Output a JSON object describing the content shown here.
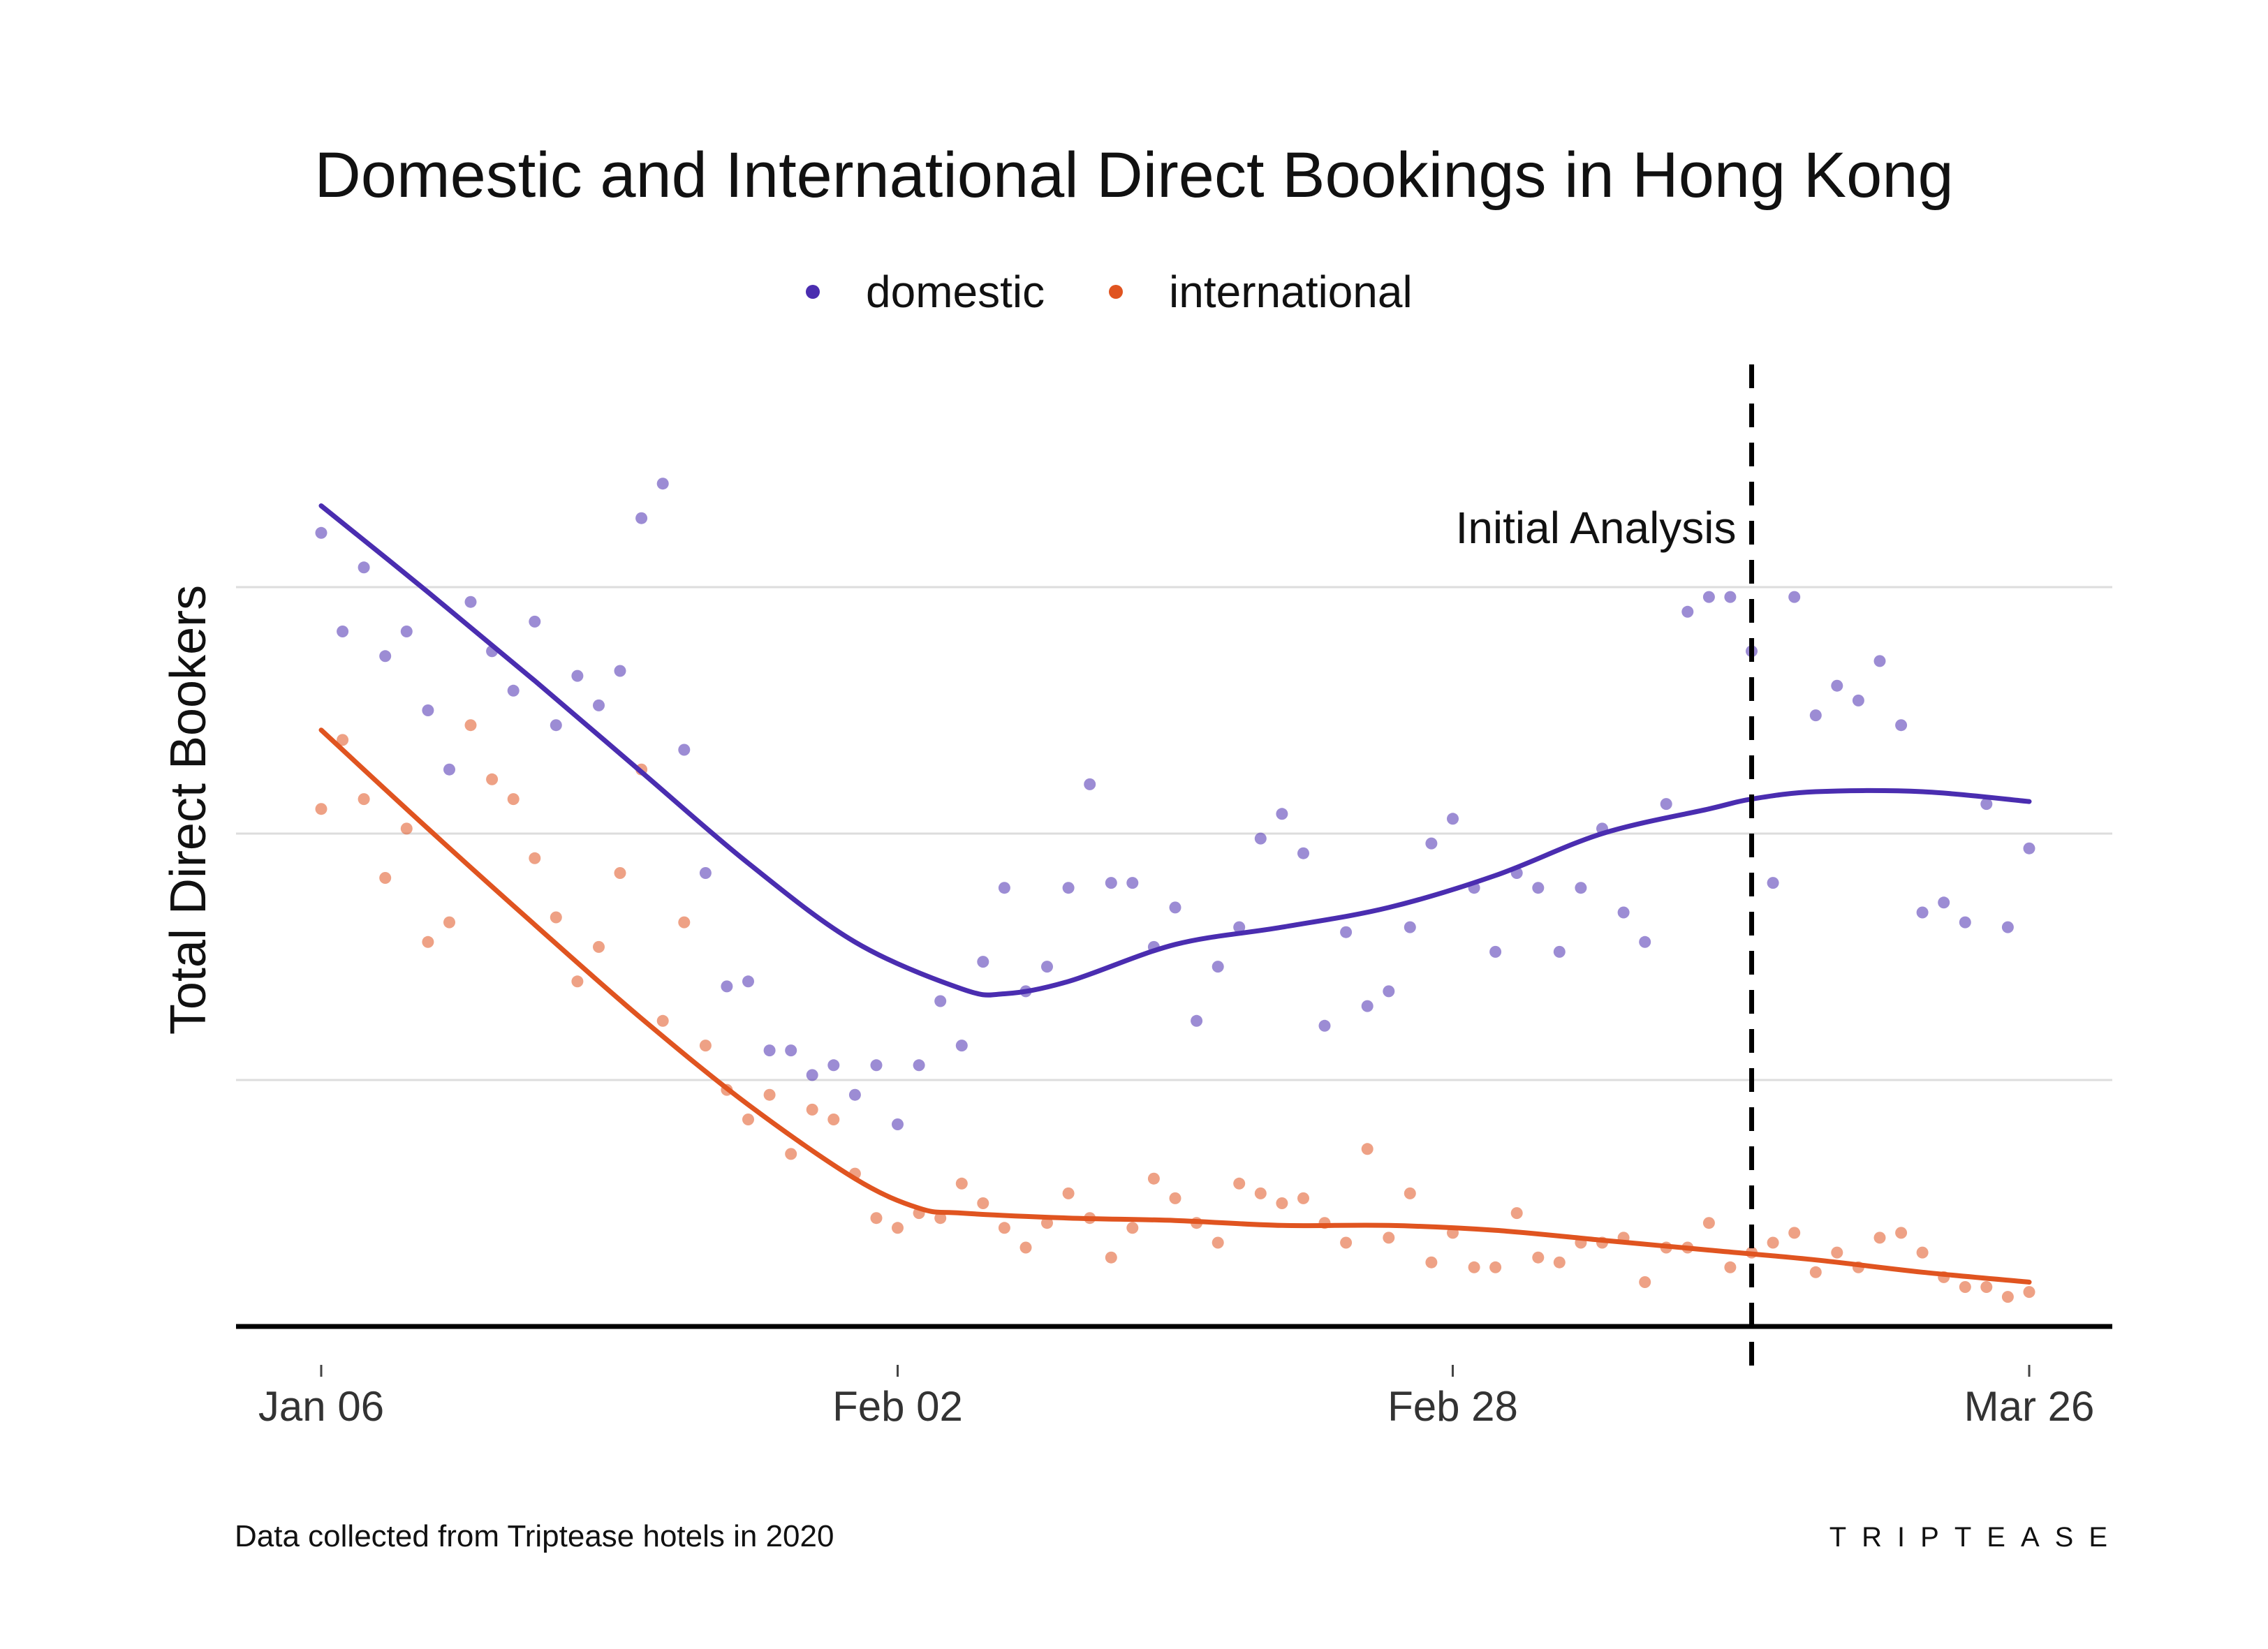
{
  "chart_data": {
    "type": "scatter",
    "title": "Domestic and International Direct Bookings in Hong Kong",
    "xlabel": "",
    "ylabel": "Total Direct Bookers",
    "x_tick_labels": [
      "Jan 06",
      "Feb 02",
      "Feb 28",
      "Mar 26"
    ],
    "x_tick_days": [
      0,
      27,
      53,
      80
    ],
    "xlim": [
      -4,
      84
    ],
    "y_ticks_labeled": false,
    "ylim": [
      0,
      3.2
    ],
    "y_gridlines": [
      1,
      2,
      3
    ],
    "grid": true,
    "legend_position": "top",
    "annotation": {
      "label": "Initial Analysis",
      "x": 67
    },
    "series": [
      {
        "name": "domestic",
        "color": "#4a2db0",
        "points": [
          [
            0,
            3.22
          ],
          [
            1,
            2.82
          ],
          [
            2,
            3.08
          ],
          [
            3,
            2.72
          ],
          [
            4,
            2.82
          ],
          [
            5,
            2.5
          ],
          [
            6,
            2.26
          ],
          [
            7,
            2.94
          ],
          [
            8,
            2.74
          ],
          [
            9,
            2.58
          ],
          [
            10,
            2.86
          ],
          [
            11,
            2.44
          ],
          [
            12,
            2.64
          ],
          [
            13,
            2.52
          ],
          [
            14,
            2.66
          ],
          [
            15,
            3.28
          ],
          [
            16,
            3.42
          ],
          [
            17,
            2.34
          ],
          [
            18,
            1.84
          ],
          [
            19,
            1.38
          ],
          [
            20,
            1.4
          ],
          [
            21,
            1.12
          ],
          [
            22,
            1.12
          ],
          [
            23,
            1.02
          ],
          [
            24,
            1.06
          ],
          [
            25,
            0.94
          ],
          [
            26,
            1.06
          ],
          [
            27,
            0.82
          ],
          [
            28,
            1.06
          ],
          [
            29,
            1.32
          ],
          [
            30,
            1.14
          ],
          [
            31,
            1.48
          ],
          [
            32,
            1.78
          ],
          [
            33,
            1.36
          ],
          [
            34,
            1.46
          ],
          [
            35,
            1.78
          ],
          [
            36,
            2.2
          ],
          [
            37,
            1.8
          ],
          [
            38,
            1.8
          ],
          [
            39,
            1.54
          ],
          [
            40,
            1.7
          ],
          [
            41,
            1.24
          ],
          [
            42,
            1.46
          ],
          [
            43,
            1.62
          ],
          [
            44,
            1.98
          ],
          [
            45,
            2.08
          ],
          [
            46,
            1.92
          ],
          [
            47,
            1.22
          ],
          [
            48,
            1.6
          ],
          [
            49,
            1.3
          ],
          [
            50,
            1.36
          ],
          [
            51,
            1.62
          ],
          [
            52,
            1.96
          ],
          [
            53,
            2.06
          ],
          [
            54,
            1.78
          ],
          [
            55,
            1.52
          ],
          [
            56,
            1.84
          ],
          [
            57,
            1.78
          ],
          [
            58,
            1.52
          ],
          [
            59,
            1.78
          ],
          [
            60,
            2.02
          ],
          [
            61,
            1.68
          ],
          [
            62,
            1.56
          ],
          [
            63,
            2.12
          ],
          [
            64,
            2.9
          ],
          [
            65,
            2.96
          ],
          [
            66,
            2.96
          ],
          [
            67,
            2.74
          ],
          [
            68,
            1.8
          ],
          [
            69,
            2.96
          ],
          [
            70,
            2.48
          ],
          [
            71,
            2.6
          ],
          [
            72,
            2.54
          ],
          [
            73,
            2.7
          ],
          [
            74,
            2.44
          ],
          [
            75,
            1.68
          ],
          [
            76,
            1.72
          ],
          [
            77,
            1.64
          ],
          [
            78,
            2.12
          ],
          [
            79,
            1.62
          ],
          [
            80,
            1.94
          ]
        ],
        "trend": [
          [
            0,
            3.33
          ],
          [
            5,
            2.98
          ],
          [
            10,
            2.62
          ],
          [
            15,
            2.25
          ],
          [
            20,
            1.88
          ],
          [
            25,
            1.56
          ],
          [
            30,
            1.37
          ],
          [
            32,
            1.35
          ],
          [
            35,
            1.4
          ],
          [
            40,
            1.55
          ],
          [
            45,
            1.62
          ],
          [
            50,
            1.7
          ],
          [
            55,
            1.83
          ],
          [
            60,
            2.0
          ],
          [
            65,
            2.1
          ],
          [
            67,
            2.14
          ],
          [
            70,
            2.17
          ],
          [
            75,
            2.17
          ],
          [
            80,
            2.13
          ]
        ]
      },
      {
        "name": "international",
        "color": "#e05420",
        "points": [
          [
            0,
            2.1
          ],
          [
            1,
            2.38
          ],
          [
            2,
            2.14
          ],
          [
            3,
            1.82
          ],
          [
            4,
            2.02
          ],
          [
            5,
            1.56
          ],
          [
            6,
            1.64
          ],
          [
            7,
            2.44
          ],
          [
            8,
            2.22
          ],
          [
            9,
            2.14
          ],
          [
            10,
            1.9
          ],
          [
            11,
            1.66
          ],
          [
            12,
            1.4
          ],
          [
            13,
            1.54
          ],
          [
            14,
            1.84
          ],
          [
            15,
            2.26
          ],
          [
            16,
            1.24
          ],
          [
            17,
            1.64
          ],
          [
            18,
            1.14
          ],
          [
            19,
            0.96
          ],
          [
            20,
            0.84
          ],
          [
            21,
            0.94
          ],
          [
            22,
            0.7
          ],
          [
            23,
            0.88
          ],
          [
            24,
            0.84
          ],
          [
            25,
            0.62
          ],
          [
            26,
            0.44
          ],
          [
            27,
            0.4
          ],
          [
            28,
            0.46
          ],
          [
            29,
            0.44
          ],
          [
            30,
            0.58
          ],
          [
            31,
            0.5
          ],
          [
            32,
            0.4
          ],
          [
            33,
            0.32
          ],
          [
            34,
            0.42
          ],
          [
            35,
            0.54
          ],
          [
            36,
            0.44
          ],
          [
            37,
            0.28
          ],
          [
            38,
            0.4
          ],
          [
            39,
            0.6
          ],
          [
            40,
            0.52
          ],
          [
            41,
            0.42
          ],
          [
            42,
            0.34
          ],
          [
            43,
            0.58
          ],
          [
            44,
            0.54
          ],
          [
            45,
            0.5
          ],
          [
            46,
            0.52
          ],
          [
            47,
            0.42
          ],
          [
            48,
            0.34
          ],
          [
            49,
            0.72
          ],
          [
            50,
            0.36
          ],
          [
            51,
            0.54
          ],
          [
            52,
            0.26
          ],
          [
            53,
            0.38
          ],
          [
            54,
            0.24
          ],
          [
            55,
            0.24
          ],
          [
            56,
            0.46
          ],
          [
            57,
            0.28
          ],
          [
            58,
            0.26
          ],
          [
            59,
            0.34
          ],
          [
            60,
            0.34
          ],
          [
            61,
            0.36
          ],
          [
            62,
            0.18
          ],
          [
            63,
            0.32
          ],
          [
            64,
            0.32
          ],
          [
            65,
            0.42
          ],
          [
            66,
            0.24
          ],
          [
            67,
            0.3
          ],
          [
            68,
            0.34
          ],
          [
            69,
            0.38
          ],
          [
            70,
            0.22
          ],
          [
            71,
            0.3
          ],
          [
            72,
            0.24
          ],
          [
            73,
            0.36
          ],
          [
            74,
            0.38
          ],
          [
            75,
            0.3
          ],
          [
            76,
            0.2
          ],
          [
            77,
            0.16
          ],
          [
            78,
            0.16
          ],
          [
            79,
            0.12
          ],
          [
            80,
            0.14
          ]
        ],
        "trend": [
          [
            0,
            2.42
          ],
          [
            5,
            2.02
          ],
          [
            10,
            1.63
          ],
          [
            15,
            1.25
          ],
          [
            20,
            0.9
          ],
          [
            25,
            0.6
          ],
          [
            28,
            0.48
          ],
          [
            30,
            0.46
          ],
          [
            35,
            0.44
          ],
          [
            40,
            0.43
          ],
          [
            45,
            0.41
          ],
          [
            50,
            0.41
          ],
          [
            55,
            0.39
          ],
          [
            60,
            0.35
          ],
          [
            65,
            0.31
          ],
          [
            70,
            0.27
          ],
          [
            75,
            0.22
          ],
          [
            80,
            0.18
          ]
        ]
      }
    ]
  },
  "footer": {
    "caption": "Data collected from Triptease hotels in 2020",
    "brand": "TRIPTEASE"
  }
}
